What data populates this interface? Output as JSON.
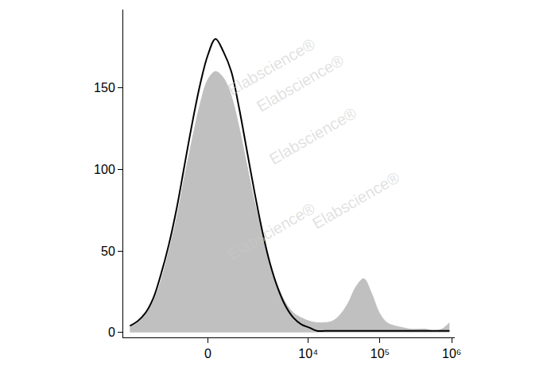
{
  "chart_data": {
    "type": "histogram",
    "x": [
      -4840,
      -3750,
      -2900,
      -2230,
      -1700,
      -1280,
      -940,
      -660,
      -420,
      -200,
      0,
      200,
      420,
      660,
      940,
      1280,
      1700,
      2230,
      2900,
      3750,
      4840,
      6220,
      8010,
      10300,
      13230,
      17000,
      21830,
      28040,
      36000,
      46240,
      59370,
      76240,
      97870,
      125600,
      161400,
      207200,
      266000,
      341600,
      438700,
      563200,
      723200,
      928800
    ],
    "series": [
      {
        "type": "area",
        "color": "#c0c0c0",
        "values": [
          3,
          6,
          11,
          19,
          32,
          50,
          70,
          95,
          118,
          140,
          155,
          160,
          156,
          145,
          126,
          103,
          80,
          60,
          42,
          28,
          18,
          12,
          9,
          7,
          6,
          6,
          7,
          11,
          18,
          28,
          33,
          24,
          12,
          6,
          4,
          3,
          2,
          2,
          2,
          1,
          2,
          6
        ]
      },
      {
        "type": "line",
        "color": "#000000",
        "values": [
          4,
          7,
          12,
          21,
          36,
          54,
          76,
          102,
          128,
          152,
          170,
          180,
          172,
          160,
          138,
          112,
          86,
          62,
          42,
          27,
          16,
          9,
          5,
          3,
          1,
          1,
          1,
          1,
          1,
          1,
          1,
          1,
          1,
          1,
          1,
          1,
          1,
          1,
          1,
          1,
          1,
          1
        ]
      }
    ],
    "xlim": [
      -6000,
      1100000
    ],
    "xticks": [
      0,
      {
        "value": 10000,
        "label": "10⁴"
      },
      {
        "value": 100000,
        "label": "10⁵"
      },
      {
        "value": 1000000,
        "label": "10⁶"
      }
    ],
    "ylim": [
      -3,
      198
    ],
    "yticks": [
      0,
      50,
      100,
      150
    ],
    "grid": false,
    "annotations": [
      "Elabscience®"
    ]
  }
}
